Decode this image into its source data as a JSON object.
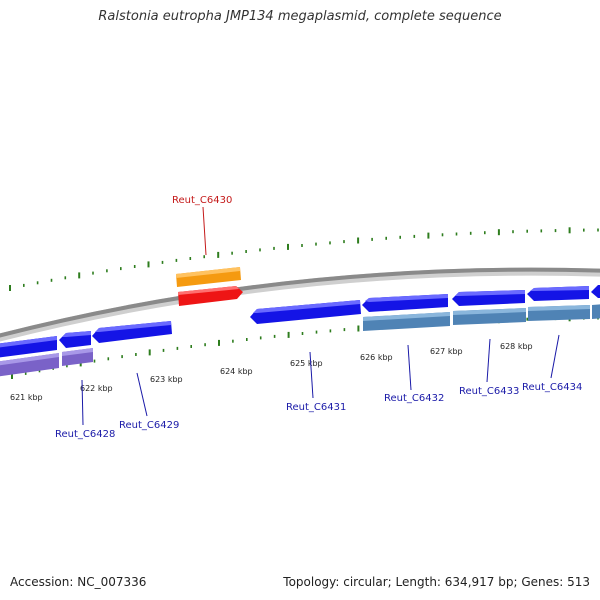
{
  "title": "Ralstonia eutropha JMP134 megaplasmid, complete sequence",
  "footer": {
    "accession": "Accession: NC_007336",
    "summary": "Topology: circular; Length: 634,917 bp; Genes: 513"
  },
  "colors": {
    "backbone": "#8a8a8a",
    "tick": "#2e7d1e",
    "gene_blue": "#1414e6",
    "gene_steel": "#4f83b5",
    "gene_purple": "#7a62c8",
    "gene_orange": "#f59a10",
    "gene_red": "#ee1515",
    "label_blue": "#1a1aa8",
    "label_red": "#c41a1a"
  },
  "scale_labels": [
    "621 kbp",
    "622 kbp",
    "623 kbp",
    "624 kbp",
    "625 kbp",
    "626 kbp",
    "627 kbp",
    "628 kbp"
  ],
  "genes": [
    {
      "name": "Reut_C6428",
      "labeled": true,
      "highlight": false
    },
    {
      "name": "Reut_C6429",
      "labeled": true,
      "highlight": false
    },
    {
      "name": "Reut_C6430",
      "labeled": true,
      "highlight": true
    },
    {
      "name": "Reut_C6431",
      "labeled": true,
      "highlight": false
    },
    {
      "name": "Reut_C6432",
      "labeled": true,
      "highlight": false
    },
    {
      "name": "Reut_C6433",
      "labeled": true,
      "highlight": false
    },
    {
      "name": "Reut_C6434",
      "labeled": true,
      "highlight": false
    }
  ]
}
